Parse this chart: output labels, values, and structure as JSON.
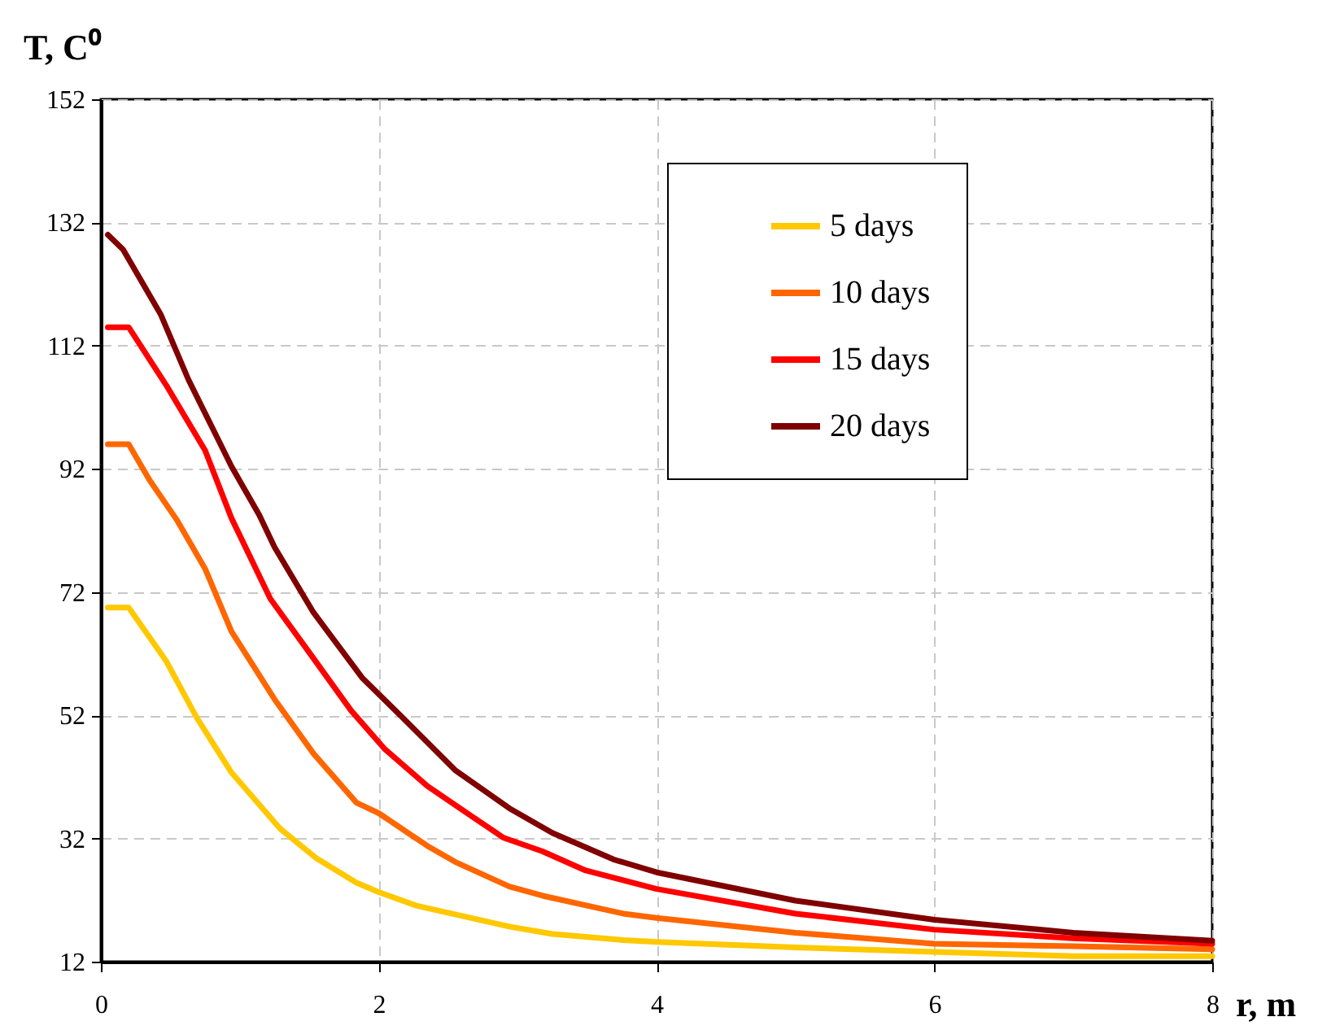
{
  "chart_data": {
    "type": "line",
    "xlabel": "r, m",
    "ylabel": "T, C⁰",
    "xlim": [
      0,
      8
    ],
    "xticks": [
      0,
      2,
      4,
      6,
      8
    ],
    "ylim": [
      12,
      152
    ],
    "yticks": [
      12,
      32,
      52,
      72,
      92,
      112,
      132,
      152
    ],
    "grid": true,
    "legend": "top right",
    "line_style": "solid",
    "marker": "none",
    "series": [
      {
        "name": "5 days",
        "color": "#ffc800",
        "x": [
          0.05,
          0.2,
          0.47,
          0.69,
          0.94,
          1.29,
          1.55,
          1.84,
          2,
          2.27,
          2.94,
          3.25,
          3.76,
          4,
          5,
          6,
          7,
          8
        ],
        "values": [
          69.5,
          69.5,
          60.8,
          51.6,
          42.7,
          33.6,
          28.8,
          24.8,
          23.3,
          21.1,
          17.7,
          16.5,
          15.5,
          15.2,
          14.3,
          13.6,
          12.9,
          12.9
        ]
      },
      {
        "name": "10 days",
        "color": "#ff6600",
        "x": [
          0.05,
          0.2,
          0.35,
          0.55,
          0.75,
          0.94,
          1.25,
          1.53,
          1.84,
          2,
          2.35,
          2.55,
          2.94,
          3.18,
          3.76,
          4,
          5,
          6,
          7,
          8
        ],
        "values": [
          96,
          96,
          90.2,
          83.6,
          75.8,
          65.6,
          54.6,
          45.8,
          37.8,
          36.1,
          30.8,
          28.2,
          24.2,
          22.7,
          19.8,
          19.1,
          16.7,
          14.9,
          14.5,
          14
        ]
      },
      {
        "name": "15 days",
        "color": "#ff0000",
        "x": [
          0.05,
          0.2,
          0.47,
          0.75,
          0.94,
          1.22,
          1.49,
          1.8,
          2.04,
          2.35,
          2.67,
          2.9,
          3.18,
          3.49,
          4,
          5,
          6,
          7,
          8
        ],
        "values": [
          115,
          115,
          105.6,
          95,
          84,
          70.9,
          62.5,
          52.8,
          46.6,
          40.5,
          35.6,
          32.1,
          29.9,
          26.8,
          23.8,
          19.8,
          17.2,
          15.8,
          14.9
        ]
      },
      {
        "name": "20 days",
        "color": "#800000",
        "x": [
          0.05,
          0.16,
          0.43,
          0.63,
          0.94,
          1.14,
          1.25,
          1.53,
          1.88,
          2.16,
          2.55,
          2.94,
          3.25,
          3.69,
          4,
          5,
          6,
          7,
          8
        ],
        "values": [
          130,
          127.6,
          117.1,
          106.5,
          92.4,
          84.5,
          79.3,
          68.7,
          58.1,
          51.9,
          43.1,
          36.9,
          32.9,
          28.6,
          26.5,
          21.9,
          18.8,
          16.7,
          15.4
        ]
      }
    ]
  }
}
